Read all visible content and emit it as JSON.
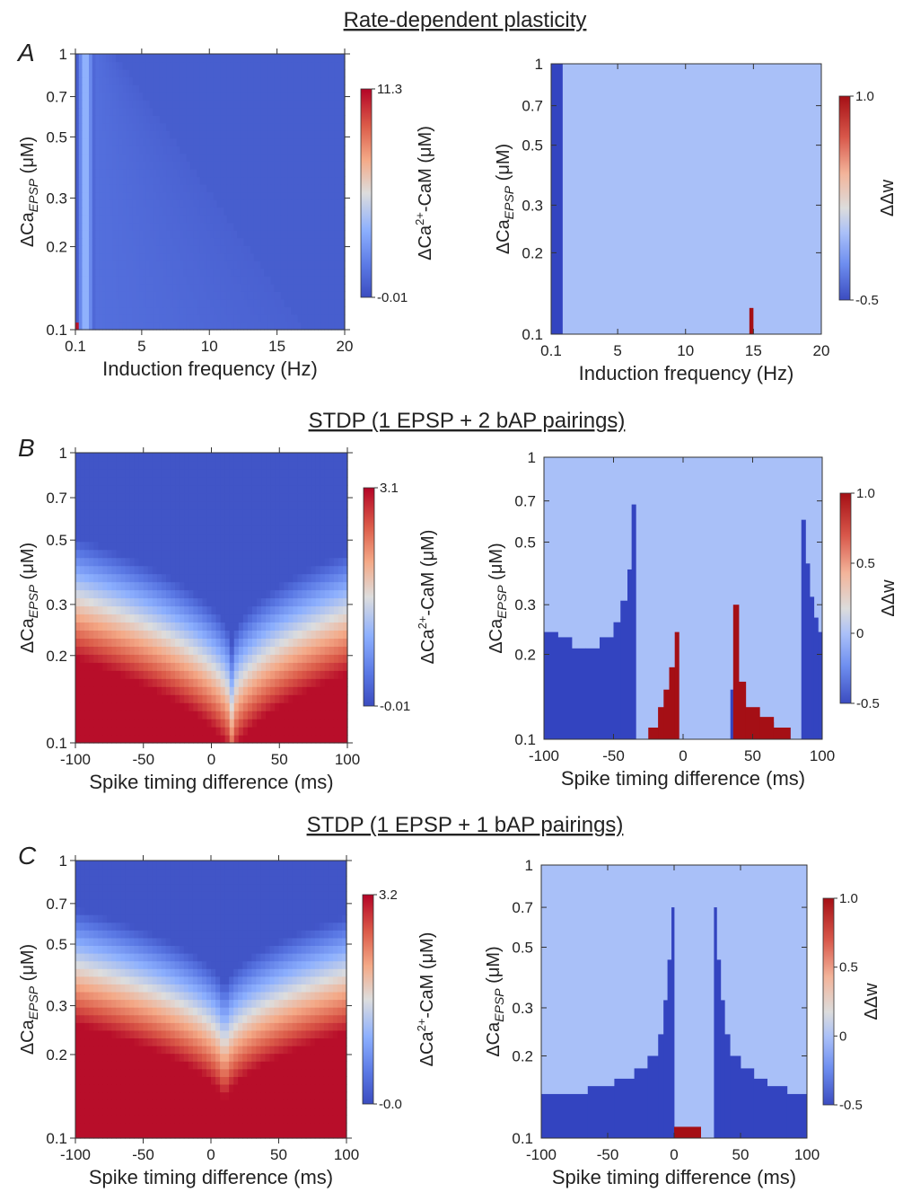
{
  "figure": {
    "titles": {
      "A": "Rate-dependent plasticity",
      "B": "STDP (1 EPSP + 2 bAP pairings)",
      "C": "STDP (1 EPSP + 1 bAP pairings)"
    },
    "panel_letters": [
      "A",
      "B",
      "C"
    ],
    "y_label_main": "ΔCa",
    "y_label_sub": "EPSP",
    "y_label_unit": " (μM)",
    "cbar_ca_label_main": "ΔCa",
    "cbar_ca_label_sup": "2+",
    "cbar_ca_label_rest": "-CaM  (μM)",
    "cbar_w_label": "ΔΔw"
  },
  "colors": {
    "coolwarm_low": "#3b4cc0",
    "coolwarm_mid": "#dddddd",
    "coolwarm_high": "#b40426",
    "dw_depression": "#3344c0",
    "dw_neutral": "#a9c0f8",
    "dw_potentiation": "#a50f15"
  },
  "chart_data": [
    {
      "id": "A-left",
      "type": "heatmap",
      "panel": "A",
      "quantity": "ΔCa2+-CaM (μM)",
      "xlabel": "Induction frequency (Hz)",
      "ylabel": "ΔCa_EPSP (μM)",
      "xlim": [
        0.1,
        20
      ],
      "ylim": [
        0.1,
        1
      ],
      "y_scale": "log",
      "x_ticks": [
        0.1,
        5,
        10,
        15,
        20
      ],
      "x_tick_labels": [
        "0.1",
        "5",
        "10",
        "15",
        "20"
      ],
      "y_ticks": [
        0.1,
        0.2,
        0.3,
        0.5,
        0.7,
        1
      ],
      "y_tick_labels": [
        "0.1",
        "0.2",
        "0.3",
        "0.5",
        "0.7",
        "1"
      ],
      "colorbar": {
        "min": -0.01,
        "max": 11.3,
        "tick_labels": [
          "11.3",
          "-0.01"
        ]
      },
      "description": "peak ΔCa2+-CaM near 0.1-0.5 Hz, low elsewhere; faint band boundary moves to lower frequency as ΔCa_EPSP grows"
    },
    {
      "id": "A-right",
      "type": "heatmap",
      "panel": "A",
      "quantity": "ΔΔw",
      "xlabel": "Induction frequency (Hz)",
      "ylabel": "ΔCa_EPSP (μM)",
      "xlim": [
        0.1,
        20
      ],
      "ylim": [
        0.1,
        1
      ],
      "y_scale": "log",
      "x_ticks": [
        0.1,
        5,
        10,
        15,
        20
      ],
      "x_tick_labels": [
        "0.1",
        "5",
        "10",
        "15",
        "20"
      ],
      "y_ticks": [
        0.1,
        0.2,
        0.3,
        0.5,
        0.7,
        1
      ],
      "y_tick_labels": [
        "0.1",
        "0.2",
        "0.3",
        "0.5",
        "0.7",
        "1"
      ],
      "colorbar": {
        "min": -0.5,
        "max": 1.0,
        "tick_labels": [
          "1.0",
          "-0.5"
        ]
      },
      "regions": [
        {
          "value": -0.5,
          "x_range": [
            0.1,
            0.95
          ],
          "y_range": [
            0.1,
            1
          ]
        },
        {
          "value": 1.0,
          "x_range": [
            14.7,
            15.0
          ],
          "y_range": [
            0.1,
            0.125
          ]
        }
      ]
    },
    {
      "id": "B-left",
      "type": "heatmap",
      "panel": "B",
      "quantity": "ΔCa2+-CaM (μM)",
      "xlabel": "Spike timing difference (ms)",
      "ylabel": "ΔCa_EPSP (μM)",
      "xlim": [
        -100,
        100
      ],
      "ylim": [
        0.1,
        1
      ],
      "y_scale": "log",
      "x_ticks": [
        -100,
        -50,
        0,
        50,
        100
      ],
      "x_tick_labels": [
        "-100",
        "-50",
        "0",
        "50",
        "100"
      ],
      "y_ticks": [
        0.1,
        0.2,
        0.3,
        0.5,
        0.7,
        1
      ],
      "y_tick_labels": [
        "0.1",
        "0.2",
        "0.3",
        "0.5",
        "0.7",
        "1"
      ],
      "colorbar": {
        "min": -0.01,
        "max": 3.1,
        "tick_labels": [
          "3.1",
          "-0.01"
        ]
      },
      "description": "V-shaped boundary: high ΔCa2+-CaM at low ΔCa_EPSP, minimum near Δt ≈ 15 ms",
      "v_center_ms": 15,
      "v_bottom_y": 0.135,
      "v_edge_y": 0.32
    },
    {
      "id": "B-right",
      "type": "heatmap",
      "panel": "B",
      "quantity": "ΔΔw",
      "xlabel": "Spike timing difference (ms)",
      "ylabel": "ΔCa_EPSP (μM)",
      "xlim": [
        -100,
        100
      ],
      "ylim": [
        0.1,
        1
      ],
      "y_scale": "log",
      "x_ticks": [
        -100,
        -50,
        0,
        50,
        100
      ],
      "x_tick_labels": [
        "-100",
        "-50",
        "0",
        "50",
        "100"
      ],
      "y_ticks": [
        0.1,
        0.2,
        0.3,
        0.5,
        0.7,
        1
      ],
      "y_tick_labels": [
        "0.1",
        "0.2",
        "0.3",
        "0.5",
        "0.7",
        "1"
      ],
      "colorbar": {
        "min": -0.5,
        "max": 1.0,
        "tick_labels": [
          "1.0",
          "0.5",
          "0",
          "-0.5"
        ],
        "ticks": [
          1.0,
          0.5,
          0,
          -0.5
        ]
      },
      "depression_columns": [
        [
          -100,
          -90,
          0.24
        ],
        [
          -90,
          -80,
          0.23
        ],
        [
          -80,
          -70,
          0.21
        ],
        [
          -70,
          -60,
          0.21
        ],
        [
          -60,
          -50,
          0.23
        ],
        [
          -50,
          -45,
          0.26
        ],
        [
          -45,
          -40,
          0.31
        ],
        [
          -40,
          -37,
          0.4
        ],
        [
          -37,
          -34,
          0.68
        ],
        [
          34,
          37,
          0.15
        ],
        [
          37,
          40,
          0.14
        ],
        [
          40,
          45,
          0.13
        ],
        [
          45,
          55,
          0.12
        ],
        [
          55,
          65,
          0.115
        ],
        [
          65,
          77,
          0.11
        ],
        [
          77,
          85,
          0.1
        ],
        [
          85,
          88,
          0.6
        ],
        [
          88,
          91,
          0.42
        ],
        [
          91,
          94,
          0.32
        ],
        [
          94,
          97,
          0.27
        ],
        [
          97,
          100,
          0.24
        ]
      ],
      "potentiation_columns": [
        [
          -25,
          -18,
          0.11
        ],
        [
          -18,
          -14,
          0.13
        ],
        [
          -14,
          -10,
          0.15
        ],
        [
          -10,
          -6,
          0.18
        ],
        [
          -6,
          -3,
          0.24
        ],
        [
          36,
          40,
          0.3
        ],
        [
          40,
          45,
          0.16
        ],
        [
          45,
          55,
          0.13
        ],
        [
          55,
          65,
          0.12
        ],
        [
          65,
          77,
          0.11
        ]
      ]
    },
    {
      "id": "C-left",
      "type": "heatmap",
      "panel": "C",
      "quantity": "ΔCa2+-CaM (μM)",
      "xlabel": "Spike timing difference (ms)",
      "ylabel": "ΔCa_EPSP (μM)",
      "xlim": [
        -100,
        100
      ],
      "ylim": [
        0.1,
        1
      ],
      "y_scale": "log",
      "x_ticks": [
        -100,
        -50,
        0,
        50,
        100
      ],
      "x_tick_labels": [
        "-100",
        "-50",
        "0",
        "50",
        "100"
      ],
      "y_ticks": [
        0.1,
        0.2,
        0.3,
        0.5,
        0.7,
        1
      ],
      "y_tick_labels": [
        "0.1",
        "0.2",
        "0.3",
        "0.5",
        "0.7",
        "1"
      ],
      "colorbar": {
        "min": -0.0,
        "max": 3.2,
        "tick_labels": [
          "3.2",
          "-0.0"
        ]
      },
      "description": "V-shaped boundary: high ΔCa2+-CaM at low ΔCa_EPSP, minimum near Δt ≈ 10 ms",
      "v_center_ms": 10,
      "v_bottom_y": 0.21,
      "v_edge_y": 0.42
    },
    {
      "id": "C-right",
      "type": "heatmap",
      "panel": "C",
      "quantity": "ΔΔw",
      "xlabel": "Spike timing difference (ms)",
      "ylabel": "ΔCa_EPSP (μM)",
      "xlim": [
        -100,
        100
      ],
      "ylim": [
        0.1,
        1
      ],
      "y_scale": "log",
      "x_ticks": [
        -100,
        -50,
        0,
        50,
        100
      ],
      "x_tick_labels": [
        "-100",
        "-50",
        "0",
        "50",
        "100"
      ],
      "y_ticks": [
        0.1,
        0.2,
        0.3,
        0.5,
        0.7,
        1
      ],
      "y_tick_labels": [
        "0.1",
        "0.2",
        "0.3",
        "0.5",
        "0.7",
        "1"
      ],
      "colorbar": {
        "min": -0.5,
        "max": 1.0,
        "tick_labels": [
          "1.0",
          "0.5",
          "0",
          "-0.5"
        ],
        "ticks": [
          1.0,
          0.5,
          0,
          -0.5
        ]
      },
      "depression_columns": [
        [
          -100,
          -65,
          0.145
        ],
        [
          -65,
          -45,
          0.155
        ],
        [
          -45,
          -30,
          0.165
        ],
        [
          -30,
          -20,
          0.18
        ],
        [
          -20,
          -12,
          0.2
        ],
        [
          -12,
          -8,
          0.24
        ],
        [
          -8,
          -5,
          0.32
        ],
        [
          -5,
          -2,
          0.45
        ],
        [
          -2,
          0,
          0.7
        ],
        [
          30,
          32,
          0.7
        ],
        [
          32,
          35,
          0.45
        ],
        [
          35,
          38,
          0.32
        ],
        [
          38,
          42,
          0.24
        ],
        [
          42,
          50,
          0.2
        ],
        [
          50,
          60,
          0.18
        ],
        [
          60,
          70,
          0.165
        ],
        [
          70,
          85,
          0.155
        ],
        [
          85,
          100,
          0.145
        ]
      ],
      "potentiation_columns": [
        [
          0,
          20,
          0.11
        ]
      ]
    }
  ]
}
